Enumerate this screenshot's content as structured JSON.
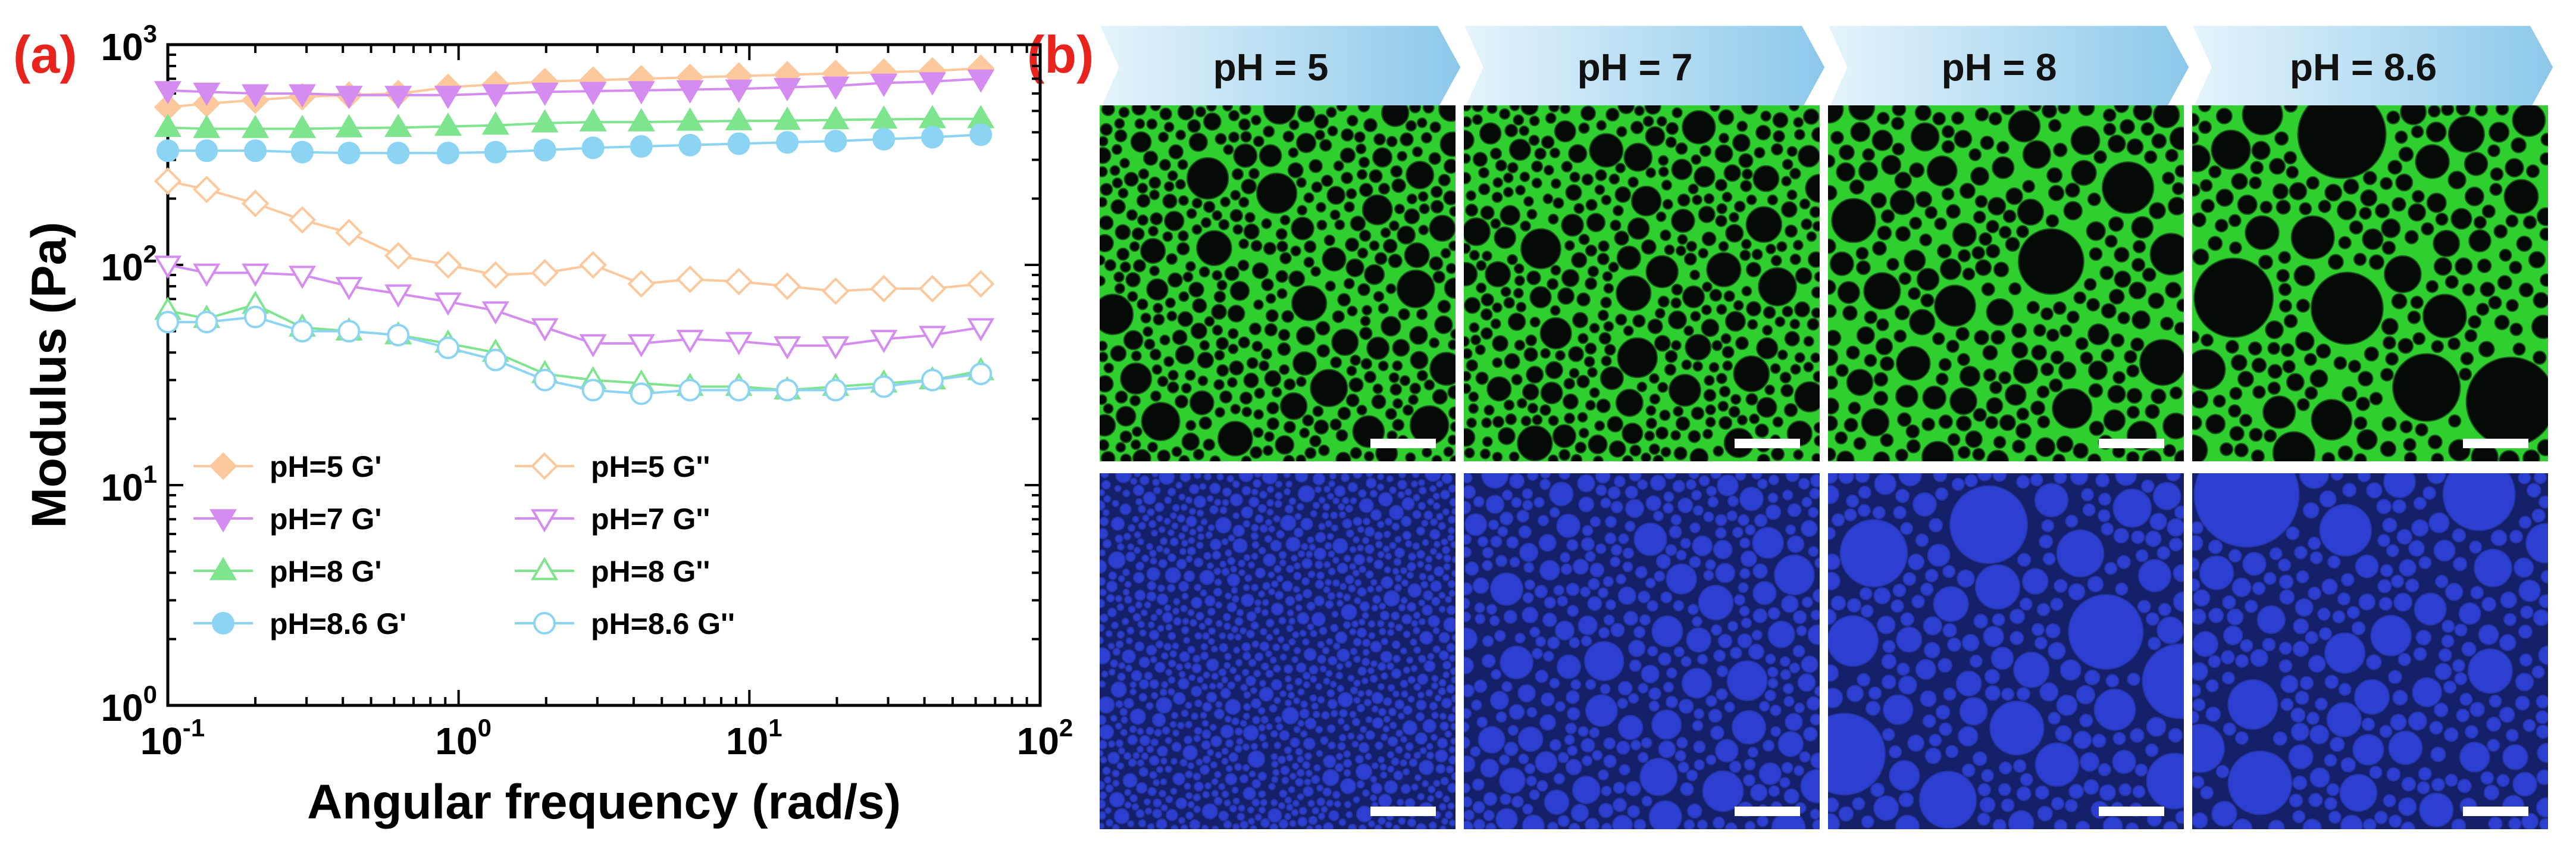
{
  "figure": {
    "panel_a_label": "(a)",
    "panel_b_label": "(b)"
  },
  "chart_data": {
    "type": "line",
    "xlabel": "Angular frequency (rad/s)",
    "ylabel": "Modulus (Pa)",
    "x_scale": "log",
    "y_scale": "log",
    "xlim": [
      0.1,
      100
    ],
    "ylim": [
      1,
      1000
    ],
    "x_ticks": [
      0.1,
      1,
      10,
      100
    ],
    "x_tick_labels": [
      {
        "base": "10",
        "exp": "-1"
      },
      {
        "base": "10",
        "exp": "0"
      },
      {
        "base": "10",
        "exp": "1"
      },
      {
        "base": "10",
        "exp": "2"
      }
    ],
    "y_ticks": [
      1,
      10,
      100,
      1000
    ],
    "y_tick_labels": [
      {
        "base": "10",
        "exp": "0"
      },
      {
        "base": "10",
        "exp": "1"
      },
      {
        "base": "10",
        "exp": "2"
      },
      {
        "base": "10",
        "exp": "3"
      }
    ],
    "grid": false,
    "legend_position": "bottom-left",
    "x": [
      0.1,
      0.136,
      0.2,
      0.29,
      0.42,
      0.62,
      0.92,
      1.34,
      1.98,
      2.9,
      4.25,
      6.25,
      9.2,
      13.5,
      19.8,
      29,
      42.6,
      62.5
    ],
    "series": [
      {
        "name": "pH=5 G'",
        "color": "#fcc89c",
        "marker": "diamond",
        "filled": true,
        "values": [
          520,
          540,
          560,
          580,
          590,
          600,
          640,
          660,
          680,
          690,
          700,
          710,
          720,
          730,
          740,
          750,
          760,
          780
        ]
      },
      {
        "name": "pH=5 G''",
        "color": "#fcc89c",
        "marker": "diamond",
        "filled": false,
        "values": [
          240,
          220,
          190,
          160,
          140,
          110,
          100,
          90,
          92,
          100,
          82,
          86,
          84,
          80,
          76,
          78,
          78,
          82
        ]
      },
      {
        "name": "pH=7 G'",
        "color": "#d48cf0",
        "marker": "triangle-down",
        "filled": true,
        "values": [
          620,
          610,
          600,
          600,
          590,
          590,
          590,
          600,
          610,
          615,
          620,
          625,
          630,
          640,
          650,
          670,
          680,
          700
        ]
      },
      {
        "name": "pH=7 G''",
        "color": "#d48cf0",
        "marker": "triangle-down",
        "filled": false,
        "values": [
          100,
          92,
          92,
          90,
          80,
          74,
          68,
          62,
          52,
          44,
          44,
          46,
          45,
          43,
          43,
          46,
          48,
          52
        ]
      },
      {
        "name": "pH=8 G'",
        "color": "#7ee48e",
        "marker": "triangle-up",
        "filled": true,
        "values": [
          420,
          415,
          415,
          415,
          418,
          420,
          425,
          430,
          440,
          445,
          445,
          448,
          450,
          452,
          455,
          458,
          460,
          460
        ]
      },
      {
        "name": "pH=8 G''",
        "color": "#7ee48e",
        "marker": "triangle-up",
        "filled": false,
        "values": [
          62,
          57,
          66,
          52,
          50,
          48,
          44,
          40,
          32,
          30,
          29,
          28,
          28,
          27,
          28,
          29,
          30,
          33
        ]
      },
      {
        "name": "pH=8.6 G'",
        "color": "#8cd4f4",
        "marker": "circle",
        "filled": true,
        "values": [
          330,
          330,
          330,
          325,
          322,
          322,
          322,
          325,
          332,
          340,
          345,
          350,
          355,
          360,
          365,
          372,
          380,
          390
        ]
      },
      {
        "name": "pH=8.6 G''",
        "color": "#8cd4f4",
        "marker": "circle",
        "filled": false,
        "values": [
          55,
          55,
          58,
          50,
          50,
          48,
          42,
          37,
          30,
          27,
          26,
          27,
          27,
          27,
          27,
          28,
          30,
          32
        ]
      }
    ]
  },
  "panel_b": {
    "ph_labels": [
      "pH = 5",
      "pH = 7",
      "pH = 8",
      "pH = 8.6"
    ],
    "colors": {
      "green_bg": "#111a11",
      "green_line": "#2fcf2f",
      "green_fill": "#060a06",
      "blue_bg": "#1a2a8c",
      "blue_line": "#14206a",
      "blue_fill": "#2d3fd0",
      "banner_light": "#e6f4fb",
      "banner_dark": "#8cc8ea"
    }
  }
}
